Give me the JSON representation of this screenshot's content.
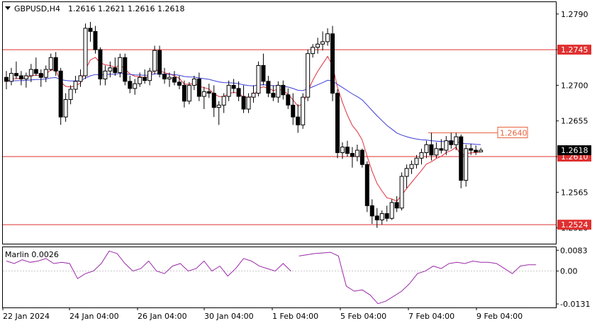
{
  "chart_data": {
    "type": "candlestick",
    "symbol_header": {
      "label": "GBPUSD,H4",
      "values": "1.2616 1.2621 1.2616 1.2618"
    },
    "price_axis": {
      "min": 1.25,
      "max": 1.2805,
      "ticks": [
        "1.2790",
        "1.2745",
        "1.2700",
        "1.2655",
        "1.2610",
        "1.2565",
        "1.2520"
      ]
    },
    "time_axis": {
      "labels": [
        "22 Jan 2024",
        "24 Jan 04:00",
        "26 Jan 04:00",
        "30 Jan 04:00",
        "1 Feb 04:00",
        "5 Feb 04:00",
        "7 Feb 04:00",
        "9 Feb 04:00"
      ]
    },
    "horizontal_levels": [
      {
        "value": 1.2745,
        "label": "1.2745",
        "color": "#e03030"
      },
      {
        "value": 1.261,
        "label": "1.2610",
        "color": "#e03030"
      },
      {
        "value": 1.2524,
        "label": "1.2524",
        "color": "#e03030"
      }
    ],
    "segment_level": {
      "value": 1.264,
      "label": "1.2640",
      "color": "#e8623c"
    },
    "current_price": {
      "value": 1.2618,
      "label": "1.2618"
    },
    "candles": [
      [
        1.271,
        1.2718,
        1.2695,
        1.2705
      ],
      [
        1.2705,
        1.2722,
        1.27,
        1.2715
      ],
      [
        1.2715,
        1.273,
        1.2708,
        1.2712
      ],
      [
        1.2712,
        1.2718,
        1.27,
        1.2708
      ],
      [
        1.2708,
        1.2716,
        1.2697,
        1.2712
      ],
      [
        1.2712,
        1.2727,
        1.2704,
        1.272
      ],
      [
        1.272,
        1.2735,
        1.2712,
        1.2715
      ],
      [
        1.2715,
        1.272,
        1.2698,
        1.271
      ],
      [
        1.271,
        1.2725,
        1.2704,
        1.272
      ],
      [
        1.272,
        1.274,
        1.2718,
        1.2735
      ],
      [
        1.2735,
        1.2742,
        1.2712,
        1.2718
      ],
      [
        1.2718,
        1.2722,
        1.265,
        1.266
      ],
      [
        1.266,
        1.269,
        1.2654,
        1.2682
      ],
      [
        1.2682,
        1.27,
        1.2676,
        1.2695
      ],
      [
        1.2695,
        1.2712,
        1.269,
        1.2705
      ],
      [
        1.2705,
        1.272,
        1.2698,
        1.2712
      ],
      [
        1.2712,
        1.2778,
        1.2708,
        1.2772
      ],
      [
        1.2772,
        1.278,
        1.2755,
        1.2768
      ],
      [
        1.2768,
        1.2775,
        1.274,
        1.2745
      ],
      [
        1.2745,
        1.2748,
        1.27,
        1.2708
      ],
      [
        1.2708,
        1.2725,
        1.27,
        1.2718
      ],
      [
        1.2718,
        1.273,
        1.271,
        1.2722
      ],
      [
        1.2722,
        1.2735,
        1.2712,
        1.2716
      ],
      [
        1.2716,
        1.274,
        1.271,
        1.2735
      ],
      [
        1.2735,
        1.274,
        1.27,
        1.2705
      ],
      [
        1.2705,
        1.2712,
        1.269,
        1.2696
      ],
      [
        1.2696,
        1.2708,
        1.2688,
        1.2702
      ],
      [
        1.2702,
        1.2716,
        1.2698,
        1.271
      ],
      [
        1.271,
        1.272,
        1.2702,
        1.2706
      ],
      [
        1.2706,
        1.2722,
        1.27,
        1.2718
      ],
      [
        1.2718,
        1.275,
        1.2714,
        1.2744
      ],
      [
        1.2744,
        1.275,
        1.271,
        1.2714
      ],
      [
        1.2714,
        1.2722,
        1.2702,
        1.2708
      ],
      [
        1.2708,
        1.2716,
        1.2698,
        1.271
      ],
      [
        1.271,
        1.2718,
        1.27,
        1.2704
      ],
      [
        1.2704,
        1.2712,
        1.2695,
        1.27
      ],
      [
        1.27,
        1.2706,
        1.2672,
        1.268
      ],
      [
        1.268,
        1.2704,
        1.2676,
        1.27
      ],
      [
        1.27,
        1.2712,
        1.2694,
        1.2708
      ],
      [
        1.2708,
        1.2716,
        1.268,
        1.2686
      ],
      [
        1.2686,
        1.2698,
        1.267,
        1.2692
      ],
      [
        1.2692,
        1.2702,
        1.2684,
        1.269
      ],
      [
        1.269,
        1.27,
        1.266,
        1.2672
      ],
      [
        1.2672,
        1.268,
        1.265,
        1.2675
      ],
      [
        1.2675,
        1.269,
        1.2665,
        1.2686
      ],
      [
        1.2686,
        1.2706,
        1.268,
        1.27
      ],
      [
        1.27,
        1.2708,
        1.269,
        1.2696
      ],
      [
        1.2696,
        1.2705,
        1.268,
        1.2686
      ],
      [
        1.2686,
        1.27,
        1.2665,
        1.267
      ],
      [
        1.267,
        1.269,
        1.2665,
        1.2685
      ],
      [
        1.2685,
        1.27,
        1.2678,
        1.269
      ],
      [
        1.269,
        1.273,
        1.2686,
        1.2725
      ],
      [
        1.2725,
        1.274,
        1.27,
        1.2705
      ],
      [
        1.2705,
        1.2712,
        1.2685,
        1.269
      ],
      [
        1.269,
        1.27,
        1.268,
        1.2685
      ],
      [
        1.2685,
        1.2705,
        1.2678,
        1.27
      ],
      [
        1.27,
        1.2706,
        1.2682,
        1.2688
      ],
      [
        1.2688,
        1.2696,
        1.267,
        1.2675
      ],
      [
        1.2675,
        1.269,
        1.265,
        1.266
      ],
      [
        1.266,
        1.2676,
        1.264,
        1.265
      ],
      [
        1.265,
        1.269,
        1.2645,
        1.2685
      ],
      [
        1.2685,
        1.2745,
        1.268,
        1.274
      ],
      [
        1.274,
        1.2752,
        1.2735,
        1.2748
      ],
      [
        1.2748,
        1.276,
        1.274,
        1.2752
      ],
      [
        1.2752,
        1.2768,
        1.2744,
        1.2755
      ],
      [
        1.2755,
        1.2772,
        1.275,
        1.2765
      ],
      [
        1.2765,
        1.2775,
        1.268,
        1.269
      ],
      [
        1.269,
        1.2695,
        1.2608,
        1.2615
      ],
      [
        1.2615,
        1.2628,
        1.2607,
        1.2622
      ],
      [
        1.2622,
        1.263,
        1.261,
        1.2614
      ],
      [
        1.2614,
        1.2622,
        1.2596,
        1.261
      ],
      [
        1.261,
        1.2625,
        1.2604,
        1.2618
      ],
      [
        1.2618,
        1.262,
        1.2596,
        1.26
      ],
      [
        1.26,
        1.2604,
        1.254,
        1.2548
      ],
      [
        1.2548,
        1.2556,
        1.2525,
        1.2535
      ],
      [
        1.2535,
        1.2545,
        1.252,
        1.253
      ],
      [
        1.253,
        1.2542,
        1.2524,
        1.2538
      ],
      [
        1.2538,
        1.2548,
        1.2528,
        1.2532
      ],
      [
        1.2532,
        1.2556,
        1.253,
        1.2552
      ],
      [
        1.2552,
        1.256,
        1.254,
        1.2545
      ],
      [
        1.2545,
        1.259,
        1.2542,
        1.2585
      ],
      [
        1.2585,
        1.26,
        1.257,
        1.2595
      ],
      [
        1.2595,
        1.2605,
        1.2588,
        1.26
      ],
      [
        1.26,
        1.2612,
        1.2595,
        1.2608
      ],
      [
        1.2608,
        1.262,
        1.26,
        1.2615
      ],
      [
        1.2615,
        1.263,
        1.2608,
        1.2625
      ],
      [
        1.2625,
        1.264,
        1.2605,
        1.2612
      ],
      [
        1.2612,
        1.2628,
        1.2608,
        1.262
      ],
      [
        1.262,
        1.2632,
        1.2614,
        1.2618
      ],
      [
        1.2618,
        1.2636,
        1.2612,
        1.263
      ],
      [
        1.263,
        1.264,
        1.262,
        1.2625
      ],
      [
        1.2625,
        1.264,
        1.2618,
        1.2635
      ],
      [
        1.2635,
        1.2638,
        1.257,
        1.258
      ],
      [
        1.258,
        1.2625,
        1.2572,
        1.262
      ],
      [
        1.262,
        1.2626,
        1.2612,
        1.2618
      ],
      [
        1.2618,
        1.2624,
        1.2612,
        1.2616
      ],
      [
        1.2616,
        1.2621,
        1.2616,
        1.2618
      ]
    ],
    "indicator": {
      "label": "Marlin 0.0026",
      "axis_ticks": [
        "0.0083",
        "0.00",
        "-0.0131"
      ],
      "range": [
        -0.0145,
        0.0095
      ],
      "zero": 0.0,
      "color": "#9a2aa8",
      "segments": [
        [
          0.004,
          0.003,
          0.0045,
          0.0035,
          0.004,
          0.005,
          0.003,
          0.0035,
          0.003,
          -0.003,
          -0.001,
          0.0,
          0.003,
          0.008,
          0.007,
          0.003,
          0.0,
          0.001,
          0.004,
          0.0,
          -0.001,
          0.002,
          0.003,
          0.0,
          0.001,
          0.004,
          0.0,
          0.002,
          -0.002,
          0.001,
          0.005,
          0.004,
          0.002,
          0.001,
          0.0,
          0.003,
          0.0
        ],
        [
          0.006,
          0.0065,
          0.007,
          0.0072,
          0.0075,
          0.006,
          -0.006,
          -0.008,
          -0.0075,
          -0.0095,
          -0.013,
          -0.012,
          -0.01,
          -0.008,
          -0.005,
          -0.001,
          0.0,
          0.002,
          0.001,
          0.003,
          0.0035,
          0.003,
          0.004,
          0.0035,
          0.0035,
          0.003,
          0.001,
          -0.001,
          0.002,
          0.0025,
          0.0025
        ]
      ]
    }
  },
  "colors": {
    "ma_fast": "#e0303c",
    "ma_slow": "#3c3cd8",
    "candle_line": "#000000",
    "bull_fill": "#ffffff",
    "bear_fill": "#000000"
  }
}
